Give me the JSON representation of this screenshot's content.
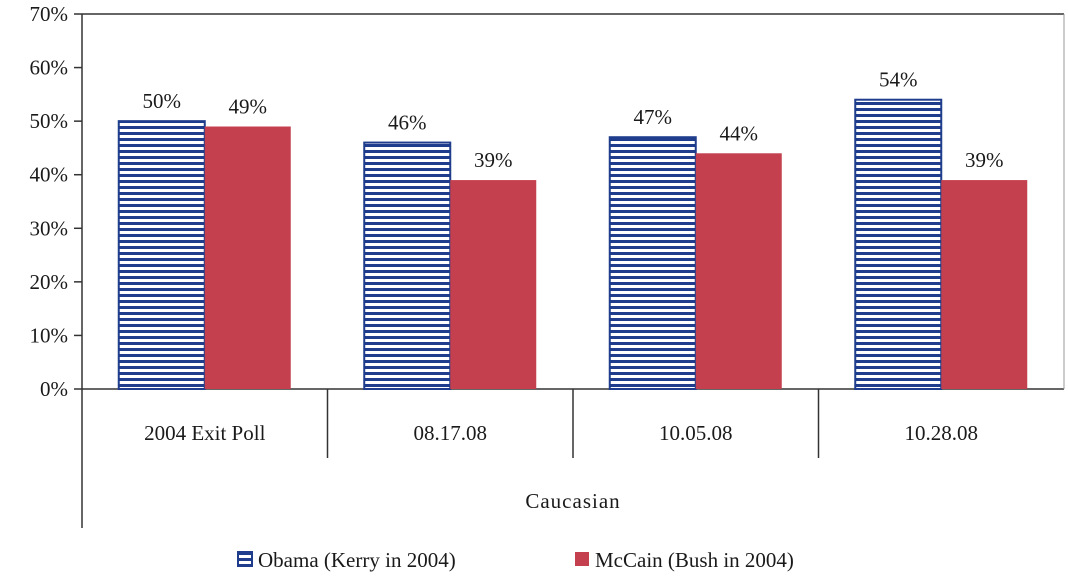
{
  "chart_data": {
    "type": "bar",
    "categories": [
      "2004 Exit Poll",
      "08.17.08",
      "10.05.08",
      "10.28.08"
    ],
    "group_label": "Caucasian",
    "series": [
      {
        "name": "Obama (Kerry in 2004)",
        "values": [
          50,
          46,
          47,
          54
        ],
        "labels": [
          "50%",
          "46%",
          "47%",
          "54%"
        ],
        "color": "#1f3d8c",
        "pattern": "horizontal-stripes"
      },
      {
        "name": "McCain (Bush in 2004)",
        "values": [
          49,
          39,
          44,
          39
        ],
        "labels": [
          "49%",
          "39%",
          "44%",
          "39%"
        ],
        "color": "#c4404f",
        "pattern": "solid"
      }
    ],
    "ylim": [
      0,
      70
    ],
    "yticks": [
      0,
      10,
      20,
      30,
      40,
      50,
      60,
      70
    ],
    "ytick_labels": [
      "0%",
      "10%",
      "20%",
      "30%",
      "40%",
      "50%",
      "60%",
      "70%"
    ],
    "grid": false,
    "legend_position": "bottom",
    "title": "",
    "xlabel": "",
    "ylabel": ""
  }
}
